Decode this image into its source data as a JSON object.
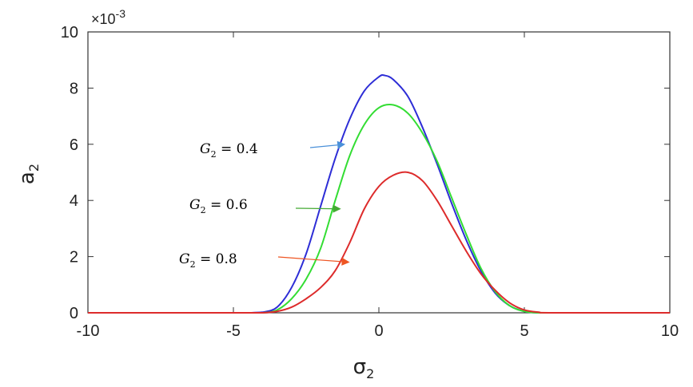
{
  "chart_data": {
    "type": "line",
    "xlabel": "σ",
    "xlabel_sub": "2",
    "ylabel": "a",
    "ylabel_sub": "2",
    "y_multiplier_label": "×10",
    "y_multiplier_exp": "-3",
    "xlim": [
      -10,
      10
    ],
    "ylim": [
      0,
      10
    ],
    "x_ticks": [
      -10,
      -5,
      0,
      5,
      10
    ],
    "y_ticks": [
      0,
      2,
      4,
      6,
      8,
      10
    ],
    "x_tick_labels": [
      "-10",
      "-5",
      "0",
      "5",
      "10"
    ],
    "y_tick_labels": [
      "0",
      "2",
      "4",
      "6",
      "8",
      "10"
    ],
    "grid": false,
    "series": [
      {
        "color": "#2d2dd6",
        "x": [
          -10,
          -5,
          -4.5,
          -4,
          -3.5,
          -3,
          -2.5,
          -2,
          -1.5,
          -1,
          -0.5,
          0,
          0.2,
          0.5,
          1,
          1.5,
          2,
          2.5,
          3,
          3.5,
          4,
          4.5,
          5,
          5.5,
          6,
          10
        ],
        "y": [
          0,
          0,
          0,
          0.02,
          0.2,
          0.9,
          2.1,
          3.8,
          5.5,
          6.9,
          7.9,
          8.4,
          8.45,
          8.3,
          7.7,
          6.6,
          5.3,
          3.9,
          2.6,
          1.5,
          0.7,
          0.25,
          0.05,
          0,
          0,
          0
        ]
      },
      {
        "color": "#33dd33",
        "x": [
          -10,
          -5,
          -4,
          -3.5,
          -3,
          -2.5,
          -2,
          -1.5,
          -1,
          -0.5,
          0,
          0.5,
          1,
          1.5,
          2,
          2.5,
          3,
          3.5,
          4,
          4.5,
          5,
          5.5,
          6,
          10
        ],
        "y": [
          0,
          0,
          0,
          0.1,
          0.5,
          1.2,
          2.3,
          4,
          5.6,
          6.7,
          7.3,
          7.4,
          7.1,
          6.4,
          5.4,
          4.1,
          2.8,
          1.6,
          0.75,
          0.25,
          0.05,
          0,
          0,
          0
        ]
      },
      {
        "color": "#dd2b2b",
        "x": [
          -10,
          -5,
          -4,
          -3.5,
          -3,
          -2.5,
          -2,
          -1.5,
          -1,
          -0.5,
          0,
          0.5,
          1,
          1.5,
          2,
          2.5,
          3,
          3.5,
          4,
          4.5,
          5,
          5.5,
          6,
          10
        ],
        "y": [
          0,
          0,
          0,
          0.05,
          0.2,
          0.5,
          0.9,
          1.5,
          2.5,
          3.7,
          4.5,
          4.9,
          5.0,
          4.7,
          4.0,
          3.1,
          2.2,
          1.4,
          0.8,
          0.35,
          0.1,
          0.02,
          0,
          0
        ]
      }
    ],
    "annotations": [
      {
        "text_main": "G",
        "text_sub": "2",
        "text_rest": " = 0.4",
        "arrow_color": "#4a90d9",
        "arrow_to": [
          -1.15,
          6.0
        ]
      },
      {
        "text_main": "G",
        "text_sub": "2",
        "text_rest": " = 0.6",
        "arrow_color": "#44aa33",
        "arrow_to": [
          -1.3,
          3.7
        ]
      },
      {
        "text_main": "G",
        "text_sub": "2",
        "text_rest": " = 0.8",
        "arrow_color": "#ee5522",
        "arrow_to": [
          -1.0,
          1.8
        ]
      }
    ]
  }
}
